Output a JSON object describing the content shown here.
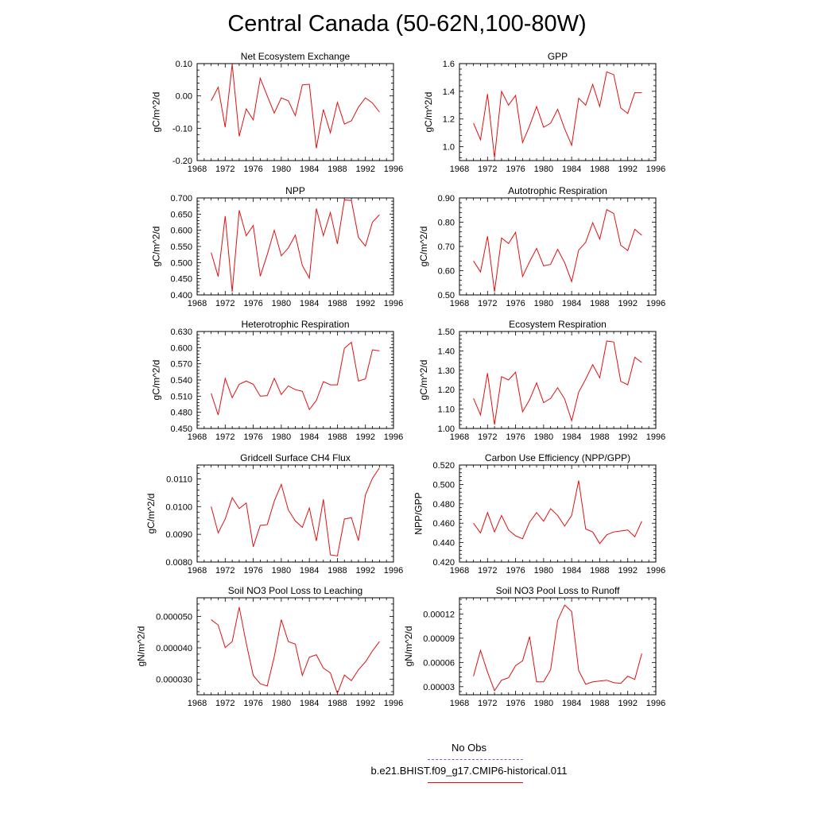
{
  "title": "Central Canada (50-62N,100-80W)",
  "legend": {
    "obs_label": "No Obs",
    "obs_color": "#6666dd",
    "model_label": "b.e21.BHIST.f09_g17.CMIP6-historical.011",
    "model_color": "#e01010"
  },
  "chart_data": [
    {
      "type": "line",
      "title": "Net Ecosystem Exchange",
      "ylabel": "gC/m^2/d",
      "xlim": [
        1968,
        1996
      ],
      "xticks": [
        "1968",
        "1972",
        "1976",
        "1980",
        "1984",
        "1988",
        "1992",
        "1996"
      ],
      "ylim": [
        -0.2,
        0.1
      ],
      "yticks": [
        "-0.20",
        "-0.10",
        "0.00",
        "0.10"
      ],
      "ytick_values": [
        -0.2,
        -0.1,
        0.0,
        0.1
      ],
      "x": [
        1970,
        1971,
        1972,
        1973,
        1974,
        1975,
        1976,
        1977,
        1978,
        1979,
        1980,
        1981,
        1982,
        1983,
        1984,
        1985,
        1986,
        1987,
        1988,
        1989,
        1990,
        1991,
        1992,
        1993,
        1994
      ],
      "series": [
        {
          "values": [
            -0.015,
            0.027,
            -0.097,
            0.098,
            -0.125,
            -0.04,
            -0.074,
            0.055,
            0.0,
            -0.053,
            -0.006,
            -0.015,
            -0.061,
            0.034,
            0.036,
            -0.162,
            -0.042,
            -0.114,
            -0.02,
            -0.087,
            -0.077,
            -0.035,
            -0.006,
            -0.022,
            -0.05
          ]
        }
      ]
    },
    {
      "type": "line",
      "title": "GPP",
      "ylabel": "gC/m^2/d",
      "xlim": [
        1968,
        1996
      ],
      "xticks": [
        "1968",
        "1972",
        "1976",
        "1980",
        "1984",
        "1988",
        "1992",
        "1996"
      ],
      "ylim": [
        0.9,
        1.6
      ],
      "yticks": [
        "1.0",
        "1.2",
        "1.4",
        "1.6"
      ],
      "ytick_values": [
        1.0,
        1.2,
        1.4,
        1.6
      ],
      "x": [
        1970,
        1971,
        1972,
        1973,
        1974,
        1975,
        1976,
        1977,
        1978,
        1979,
        1980,
        1981,
        1982,
        1983,
        1984,
        1985,
        1986,
        1987,
        1988,
        1989,
        1990,
        1991,
        1992,
        1993,
        1994
      ],
      "series": [
        {
          "values": [
            1.17,
            1.05,
            1.38,
            0.92,
            1.4,
            1.3,
            1.37,
            1.03,
            1.15,
            1.29,
            1.14,
            1.17,
            1.27,
            1.13,
            1.01,
            1.35,
            1.3,
            1.45,
            1.29,
            1.54,
            1.52,
            1.28,
            1.24,
            1.39,
            1.39
          ]
        }
      ]
    },
    {
      "type": "line",
      "title": "NPP",
      "ylabel": "gC/m^2/d",
      "xlim": [
        1968,
        1996
      ],
      "xticks": [
        "1968",
        "1972",
        "1976",
        "1980",
        "1984",
        "1988",
        "1992",
        "1996"
      ],
      "ylim": [
        0.4,
        0.7
      ],
      "yticks": [
        "0.400",
        "0.450",
        "0.500",
        "0.550",
        "0.600",
        "0.650",
        "0.700"
      ],
      "ytick_values": [
        0.4,
        0.45,
        0.5,
        0.55,
        0.6,
        0.65,
        0.7
      ],
      "x": [
        1970,
        1971,
        1972,
        1973,
        1974,
        1975,
        1976,
        1977,
        1978,
        1979,
        1980,
        1981,
        1982,
        1983,
        1984,
        1985,
        1986,
        1987,
        1988,
        1989,
        1990,
        1991,
        1992,
        1993,
        1994
      ],
      "series": [
        {
          "values": [
            0.531,
            0.457,
            0.644,
            0.41,
            0.662,
            0.583,
            0.615,
            0.458,
            0.525,
            0.6,
            0.521,
            0.545,
            0.585,
            0.491,
            0.452,
            0.667,
            0.583,
            0.655,
            0.558,
            0.694,
            0.692,
            0.578,
            0.551,
            0.625,
            0.648
          ]
        }
      ]
    },
    {
      "type": "line",
      "title": "Autotrophic Respiration",
      "ylabel": "gC/m^2/d",
      "xlim": [
        1968,
        1996
      ],
      "xticks": [
        "1968",
        "1972",
        "1976",
        "1980",
        "1984",
        "1988",
        "1992",
        "1996"
      ],
      "ylim": [
        0.5,
        0.9
      ],
      "yticks": [
        "0.50",
        "0.60",
        "0.70",
        "0.80",
        "0.90"
      ],
      "ytick_values": [
        0.5,
        0.6,
        0.7,
        0.8,
        0.9
      ],
      "x": [
        1970,
        1971,
        1972,
        1973,
        1974,
        1975,
        1976,
        1977,
        1978,
        1979,
        1980,
        1981,
        1982,
        1983,
        1984,
        1985,
        1986,
        1987,
        1988,
        1989,
        1990,
        1991,
        1992,
        1993,
        1994
      ],
      "series": [
        {
          "values": [
            0.64,
            0.595,
            0.742,
            0.513,
            0.735,
            0.712,
            0.758,
            0.576,
            0.637,
            0.692,
            0.62,
            0.626,
            0.688,
            0.633,
            0.555,
            0.685,
            0.717,
            0.798,
            0.73,
            0.852,
            0.836,
            0.705,
            0.683,
            0.771,
            0.746
          ]
        }
      ]
    },
    {
      "type": "line",
      "title": "Heterotrophic Respiration",
      "ylabel": "gC/m^2/d",
      "xlim": [
        1968,
        1996
      ],
      "xticks": [
        "1968",
        "1972",
        "1976",
        "1980",
        "1984",
        "1988",
        "1992",
        "1996"
      ],
      "ylim": [
        0.45,
        0.63
      ],
      "yticks": [
        "0.450",
        "0.480",
        "0.510",
        "0.540",
        "0.570",
        "0.600",
        "0.630"
      ],
      "ytick_values": [
        0.45,
        0.48,
        0.51,
        0.54,
        0.57,
        0.6,
        0.63
      ],
      "x": [
        1970,
        1971,
        1972,
        1973,
        1974,
        1975,
        1976,
        1977,
        1978,
        1979,
        1980,
        1981,
        1982,
        1983,
        1984,
        1985,
        1986,
        1987,
        1988,
        1989,
        1990,
        1991,
        1992,
        1993,
        1994
      ],
      "series": [
        {
          "values": [
            0.515,
            0.475,
            0.543,
            0.507,
            0.532,
            0.538,
            0.532,
            0.51,
            0.511,
            0.543,
            0.513,
            0.529,
            0.522,
            0.519,
            0.485,
            0.502,
            0.537,
            0.531,
            0.531,
            0.599,
            0.61,
            0.538,
            0.542,
            0.596,
            0.594
          ]
        }
      ]
    },
    {
      "type": "line",
      "title": "Ecosystem Respiration",
      "ylabel": "gC/m^2/d",
      "xlim": [
        1968,
        1996
      ],
      "xticks": [
        "1968",
        "1972",
        "1976",
        "1980",
        "1984",
        "1988",
        "1992",
        "1996"
      ],
      "ylim": [
        1.0,
        1.5
      ],
      "yticks": [
        "1.00",
        "1.10",
        "1.20",
        "1.30",
        "1.40",
        "1.50"
      ],
      "ytick_values": [
        1.0,
        1.1,
        1.2,
        1.3,
        1.4,
        1.5
      ],
      "x": [
        1970,
        1971,
        1972,
        1973,
        1974,
        1975,
        1976,
        1977,
        1978,
        1979,
        1980,
        1981,
        1982,
        1983,
        1984,
        1985,
        1986,
        1987,
        1988,
        1989,
        1990,
        1991,
        1992,
        1993,
        1994
      ],
      "series": [
        {
          "values": [
            1.155,
            1.07,
            1.285,
            1.02,
            1.267,
            1.25,
            1.29,
            1.086,
            1.148,
            1.235,
            1.133,
            1.155,
            1.21,
            1.152,
            1.04,
            1.187,
            1.254,
            1.329,
            1.261,
            1.451,
            1.446,
            1.243,
            1.225,
            1.367,
            1.34
          ]
        }
      ]
    },
    {
      "type": "line",
      "title": "Gridcell Surface CH4 Flux",
      "ylabel": "gC/m^2/d",
      "xlim": [
        1968,
        1996
      ],
      "xticks": [
        "1968",
        "1972",
        "1976",
        "1980",
        "1984",
        "1988",
        "1992",
        "1996"
      ],
      "ylim": [
        0.008,
        0.0115
      ],
      "yticks": [
        "0.0080",
        "0.0090",
        "0.0100",
        "0.0110"
      ],
      "ytick_values": [
        0.008,
        0.009,
        0.01,
        0.011
      ],
      "x": [
        1970,
        1971,
        1972,
        1973,
        1974,
        1975,
        1976,
        1977,
        1978,
        1979,
        1980,
        1981,
        1982,
        1983,
        1984,
        1985,
        1986,
        1987,
        1988,
        1989,
        1990,
        1991,
        1992,
        1993,
        1994
      ],
      "series": [
        {
          "values": [
            0.01,
            0.00905,
            0.00955,
            0.01032,
            0.00993,
            0.01013,
            0.00855,
            0.00932,
            0.00935,
            0.0102,
            0.0108,
            0.00988,
            0.00948,
            0.00925,
            0.00995,
            0.00876,
            0.01026,
            0.00826,
            0.00822,
            0.00955,
            0.0096,
            0.00877,
            0.01042,
            0.01102,
            0.0114
          ]
        }
      ]
    },
    {
      "type": "line",
      "title": "Carbon Use Efficiency (NPP/GPP)",
      "ylabel": "NPP/GPP",
      "xlim": [
        1968,
        1996
      ],
      "xticks": [
        "1968",
        "1972",
        "1976",
        "1980",
        "1984",
        "1988",
        "1992",
        "1996"
      ],
      "ylim": [
        0.42,
        0.52
      ],
      "yticks": [
        "0.420",
        "0.440",
        "0.460",
        "0.480",
        "0.500",
        "0.520"
      ],
      "ytick_values": [
        0.42,
        0.44,
        0.46,
        0.48,
        0.5,
        0.52
      ],
      "x": [
        1970,
        1971,
        1972,
        1973,
        1974,
        1975,
        1976,
        1977,
        1978,
        1979,
        1980,
        1981,
        1982,
        1983,
        1984,
        1985,
        1986,
        1987,
        1988,
        1989,
        1990,
        1991,
        1992,
        1993,
        1994
      ],
      "series": [
        {
          "values": [
            0.46,
            0.45,
            0.471,
            0.451,
            0.468,
            0.453,
            0.447,
            0.444,
            0.461,
            0.471,
            0.462,
            0.475,
            0.468,
            0.457,
            0.468,
            0.504,
            0.454,
            0.451,
            0.439,
            0.448,
            0.451,
            0.452,
            0.453,
            0.446,
            0.462
          ]
        }
      ]
    },
    {
      "type": "line",
      "title": "Soil NO3 Pool Loss to Leaching",
      "ylabel": "gN/m^2/d",
      "xlim": [
        1968,
        1996
      ],
      "xticks": [
        "1968",
        "1972",
        "1976",
        "1980",
        "1984",
        "1988",
        "1992",
        "1996"
      ],
      "ylim": [
        2.5e-05,
        5.6e-05
      ],
      "yticks": [
        "0.000030",
        "0.000040",
        "0.000050"
      ],
      "ytick_values": [
        3e-05,
        4e-05,
        5e-05
      ],
      "x": [
        1970,
        1971,
        1972,
        1973,
        1974,
        1975,
        1976,
        1977,
        1978,
        1979,
        1980,
        1981,
        1982,
        1983,
        1984,
        1985,
        1986,
        1987,
        1988,
        1989,
        1990,
        1991,
        1992,
        1993,
        1994
      ],
      "series": [
        {
          "values": [
            4.9e-05,
            4.73e-05,
            4.01e-05,
            4.2e-05,
            5.3e-05,
            4.15e-05,
            3.12e-05,
            2.85e-05,
            2.78e-05,
            3.72e-05,
            4.9e-05,
            4.2e-05,
            4.12e-05,
            3.12e-05,
            3.7e-05,
            3.78e-05,
            3.35e-05,
            3.2e-05,
            2.54e-05,
            3.13e-05,
            2.95e-05,
            3.3e-05,
            3.55e-05,
            3.9e-05,
            4.2e-05
          ]
        }
      ]
    },
    {
      "type": "line",
      "title": "Soil NO3 Pool Loss to Runoff",
      "ylabel": "gN/m^2/d",
      "xlim": [
        1968,
        1996
      ],
      "xticks": [
        "1968",
        "1972",
        "1976",
        "1980",
        "1984",
        "1988",
        "1992",
        "1996"
      ],
      "ylim": [
        2e-05,
        0.00014
      ],
      "yticks": [
        "0.00003",
        "0.00006",
        "0.00009",
        "0.00012"
      ],
      "ytick_values": [
        3e-05,
        6e-05,
        9e-05,
        0.00012
      ],
      "x": [
        1970,
        1971,
        1972,
        1973,
        1974,
        1975,
        1976,
        1977,
        1978,
        1979,
        1980,
        1981,
        1982,
        1983,
        1984,
        1985,
        1986,
        1987,
        1988,
        1989,
        1990,
        1991,
        1992,
        1993,
        1994
      ],
      "series": [
        {
          "values": [
            4.3e-05,
            7.5e-05,
            4.8e-05,
            2.5e-05,
            3.8e-05,
            4.1e-05,
            5.6e-05,
            6.2e-05,
            9.2e-05,
            3.6e-05,
            3.6e-05,
            5.1e-05,
            0.000112,
            0.000131,
            0.000123,
            5e-05,
            3.3e-05,
            3.6e-05,
            3.7e-05,
            3.8e-05,
            3.5e-05,
            3.4e-05,
            4.3e-05,
            3.9e-05,
            7.1e-05
          ]
        }
      ]
    }
  ]
}
